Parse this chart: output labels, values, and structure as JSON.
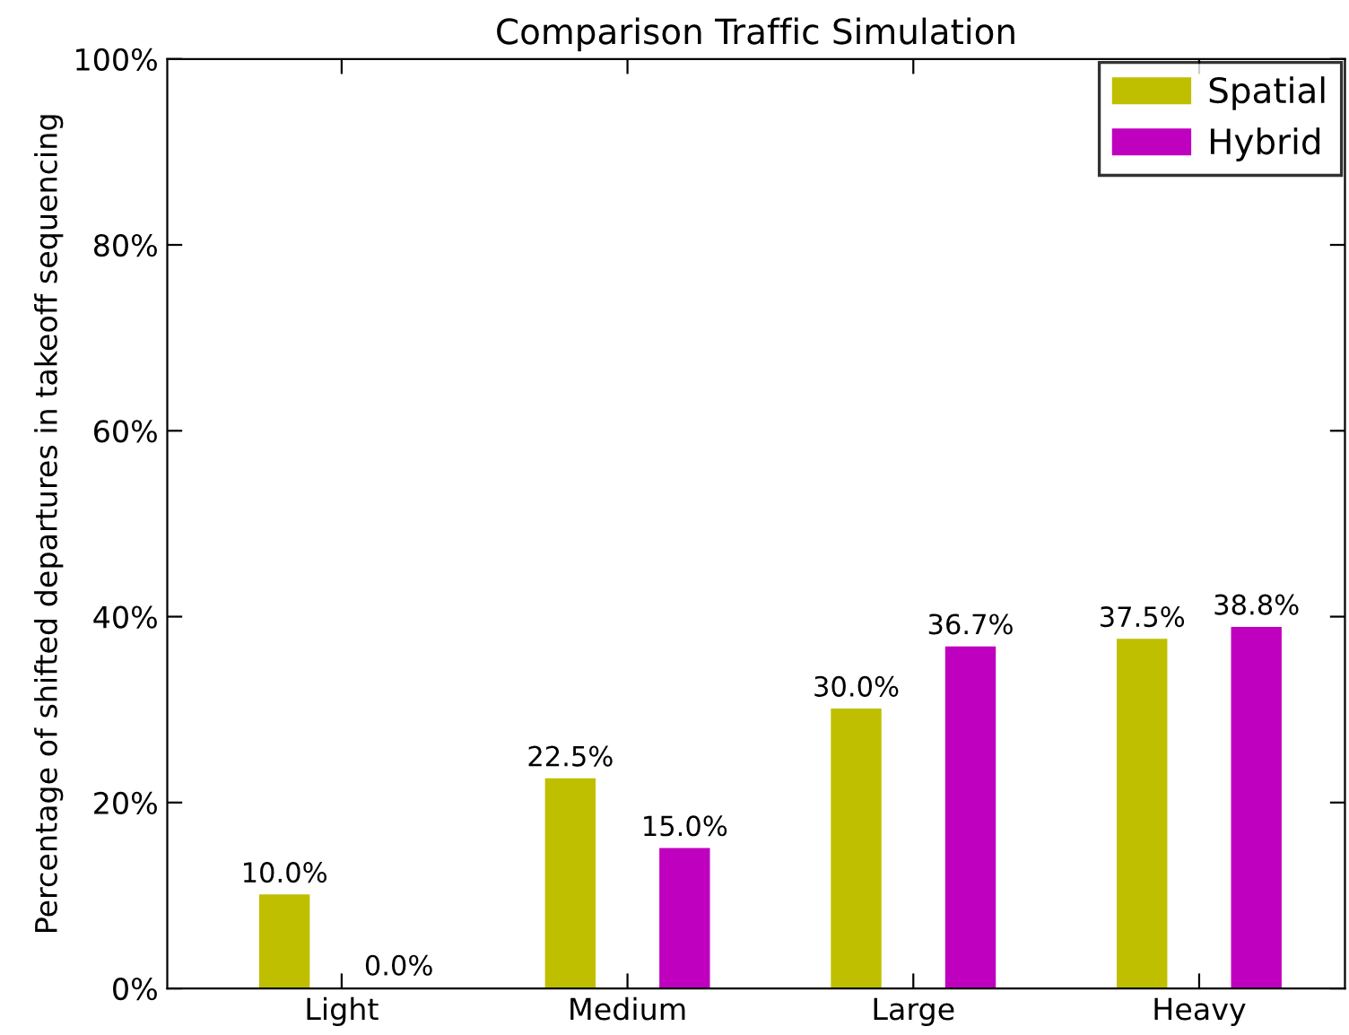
{
  "chart_data": {
    "type": "bar",
    "title": "Comparison Traffic Simulation",
    "ylabel": "Percentage of shifted departures in takeoff sequencing",
    "categories": [
      "Light",
      "Medium",
      "Large",
      "Heavy"
    ],
    "series": [
      {
        "name": "Spatial",
        "color": "#bfbf00",
        "values": [
          10.0,
          22.5,
          30.0,
          37.5
        ],
        "value_labels": [
          "10.0%",
          "22.5%",
          "30.0%",
          "37.5%"
        ]
      },
      {
        "name": "Hybrid",
        "color": "#bf00bf",
        "values": [
          0.0,
          15.0,
          36.7,
          38.8
        ],
        "value_labels": [
          "0.0%",
          "15.0%",
          "36.7%",
          "38.8%"
        ]
      }
    ],
    "ylim": [
      0,
      100
    ],
    "yticks": [
      {
        "value": 0,
        "label": "0%"
      },
      {
        "value": 20,
        "label": "20%"
      },
      {
        "value": 40,
        "label": "40%"
      },
      {
        "value": 60,
        "label": "60%"
      },
      {
        "value": 80,
        "label": "80%"
      },
      {
        "value": 100,
        "label": "100%"
      }
    ],
    "legend": "top right",
    "grid": false
  }
}
